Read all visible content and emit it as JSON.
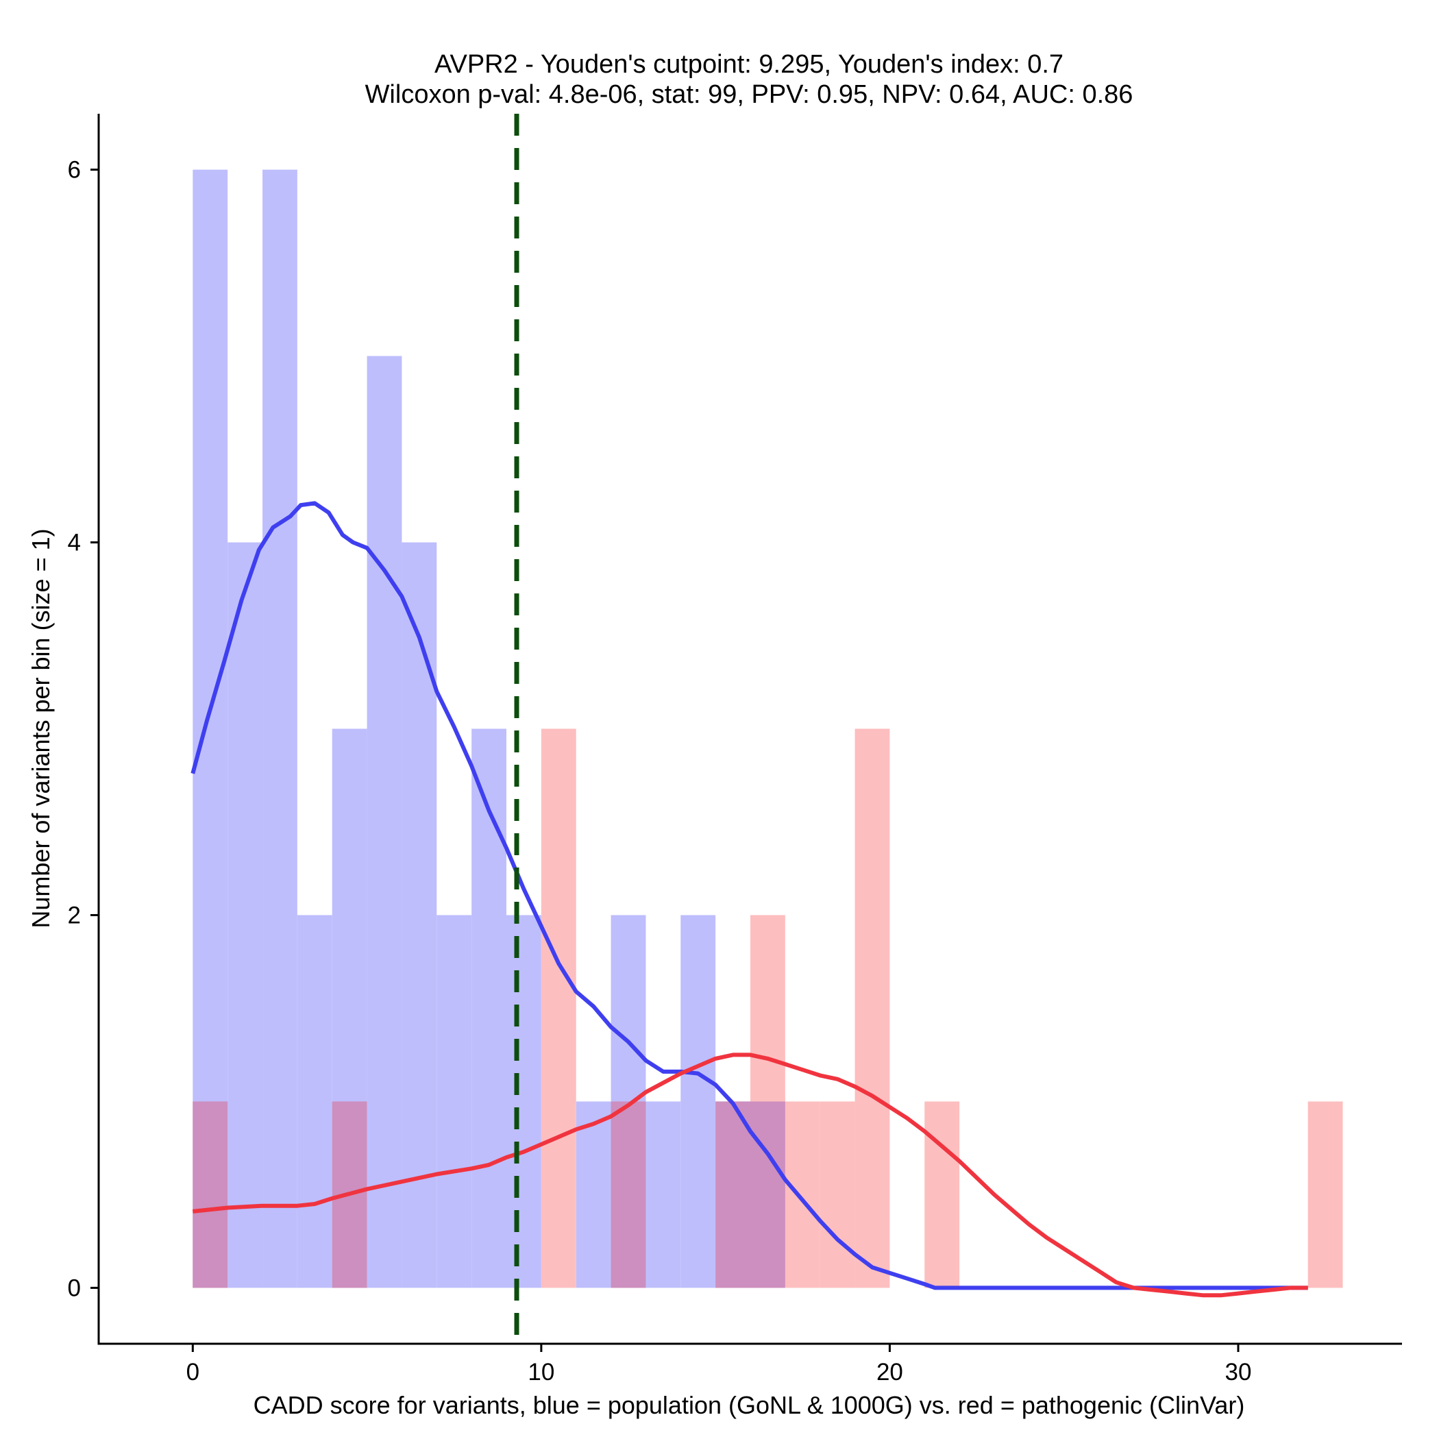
{
  "chart_data": {
    "type": "histogram",
    "title_line1": "AVPR2 - Youden's cutpoint: 9.295, Youden's index: 0.7",
    "title_line2": "Wilcoxon p-val: 4.8e-06, stat: 99, PPV: 0.95, NPV: 0.64, AUC: 0.86",
    "xlabel": "CADD score for variants, blue = population (GoNL & 1000G) vs. red = pathogenic (ClinVar)",
    "ylabel": "Number of variants per bin (size = 1)",
    "xlim": [
      -2.7,
      34.7
    ],
    "ylim": [
      -0.3,
      6.3
    ],
    "x_ticks": [
      0,
      10,
      20,
      30
    ],
    "y_ticks": [
      0,
      2,
      4,
      6
    ],
    "bin_width": 1,
    "cutpoint": 9.295,
    "colors": {
      "population_fill": "#bebefd",
      "pathogenic_fill": "#fdbebf",
      "overlap_fill": "#cc8fbf",
      "population_line": "#3f3ff0",
      "pathogenic_line": "#f0343f",
      "cutpoint_line": "#0d4d0d"
    },
    "series": [
      {
        "name": "population",
        "bins": [
          {
            "x0": 0,
            "count": 6
          },
          {
            "x0": 1,
            "count": 4
          },
          {
            "x0": 2,
            "count": 6
          },
          {
            "x0": 3,
            "count": 2
          },
          {
            "x0": 4,
            "count": 3
          },
          {
            "x0": 5,
            "count": 5
          },
          {
            "x0": 6,
            "count": 4
          },
          {
            "x0": 7,
            "count": 2
          },
          {
            "x0": 8,
            "count": 3
          },
          {
            "x0": 9,
            "count": 2
          },
          {
            "x0": 11,
            "count": 1
          },
          {
            "x0": 12,
            "count": 2
          },
          {
            "x0": 13,
            "count": 1
          },
          {
            "x0": 14,
            "count": 2
          },
          {
            "x0": 15,
            "count": 1
          },
          {
            "x0": 16,
            "count": 1
          }
        ],
        "density_curve": [
          [
            0,
            2.52
          ],
          [
            0.4,
            2.8
          ],
          [
            0.9,
            3.12
          ],
          [
            1.4,
            3.45
          ],
          [
            1.9,
            3.72
          ],
          [
            2.3,
            3.84
          ],
          [
            2.8,
            3.9
          ],
          [
            3.1,
            3.96
          ],
          [
            3.5,
            3.97
          ],
          [
            3.9,
            3.92
          ],
          [
            4.3,
            3.8
          ],
          [
            4.6,
            3.76
          ],
          [
            5.0,
            3.73
          ],
          [
            5.5,
            3.61
          ],
          [
            6.0,
            3.47
          ],
          [
            6.5,
            3.25
          ],
          [
            7.0,
            2.96
          ],
          [
            7.5,
            2.77
          ],
          [
            8.0,
            2.56
          ],
          [
            8.5,
            2.32
          ],
          [
            9.0,
            2.12
          ],
          [
            9.5,
            1.9
          ],
          [
            10.0,
            1.7
          ],
          [
            10.5,
            1.5
          ],
          [
            11.0,
            1.35
          ],
          [
            11.5,
            1.27
          ],
          [
            12.0,
            1.16
          ],
          [
            12.5,
            1.08
          ],
          [
            13.0,
            0.98
          ],
          [
            13.5,
            0.92
          ],
          [
            14.0,
            0.92
          ],
          [
            14.5,
            0.91
          ],
          [
            15.0,
            0.85
          ],
          [
            15.5,
            0.75
          ],
          [
            16.0,
            0.6
          ],
          [
            16.5,
            0.48
          ],
          [
            17.0,
            0.34
          ],
          [
            17.5,
            0.23
          ],
          [
            18.0,
            0.12
          ],
          [
            18.5,
            0.02
          ],
          [
            19.0,
            -0.06
          ],
          [
            19.5,
            -0.13
          ],
          [
            20.0,
            -0.16
          ],
          [
            20.5,
            -0.19
          ],
          [
            21.0,
            -0.22
          ],
          [
            21.3,
            -0.24
          ],
          [
            22,
            -0.24
          ],
          [
            25,
            -0.24
          ],
          [
            28,
            -0.24
          ],
          [
            32,
            -0.24
          ]
        ]
      },
      {
        "name": "pathogenic",
        "bins": [
          {
            "x0": 0,
            "count": 1
          },
          {
            "x0": 4,
            "count": 1
          },
          {
            "x0": 10,
            "count": 3
          },
          {
            "x0": 12,
            "count": 1
          },
          {
            "x0": 15,
            "count": 1
          },
          {
            "x0": 16,
            "count": 2
          },
          {
            "x0": 17,
            "count": 1
          },
          {
            "x0": 18,
            "count": 1
          },
          {
            "x0": 19,
            "count": 3
          },
          {
            "x0": 21,
            "count": 1
          },
          {
            "x0": 32,
            "count": 1
          }
        ],
        "density_curve": [
          [
            0,
            0.17
          ],
          [
            1,
            0.19
          ],
          [
            2,
            0.2
          ],
          [
            3,
            0.2
          ],
          [
            3.5,
            0.21
          ],
          [
            4,
            0.24
          ],
          [
            5,
            0.29
          ],
          [
            6,
            0.33
          ],
          [
            7,
            0.37
          ],
          [
            8,
            0.4
          ],
          [
            8.5,
            0.42
          ],
          [
            9,
            0.46
          ],
          [
            9.5,
            0.49
          ],
          [
            10,
            0.53
          ],
          [
            10.5,
            0.57
          ],
          [
            11,
            0.61
          ],
          [
            11.5,
            0.64
          ],
          [
            12,
            0.68
          ],
          [
            12.5,
            0.74
          ],
          [
            13,
            0.81
          ],
          [
            13.5,
            0.86
          ],
          [
            14,
            0.91
          ],
          [
            14.5,
            0.95
          ],
          [
            15,
            0.99
          ],
          [
            15.5,
            1.01
          ],
          [
            16,
            1.01
          ],
          [
            16.5,
            0.99
          ],
          [
            17,
            0.96
          ],
          [
            17.5,
            0.93
          ],
          [
            18,
            0.9
          ],
          [
            18.5,
            0.88
          ],
          [
            19,
            0.84
          ],
          [
            19.5,
            0.79
          ],
          [
            20,
            0.73
          ],
          [
            20.5,
            0.67
          ],
          [
            21,
            0.6
          ],
          [
            21.5,
            0.52
          ],
          [
            22,
            0.44
          ],
          [
            22.5,
            0.35
          ],
          [
            23,
            0.26
          ],
          [
            23.5,
            0.18
          ],
          [
            24,
            0.1
          ],
          [
            24.5,
            0.03
          ],
          [
            25,
            -0.03
          ],
          [
            25.5,
            -0.09
          ],
          [
            26,
            -0.15
          ],
          [
            26.5,
            -0.21
          ],
          [
            27,
            -0.24
          ],
          [
            27.5,
            -0.25
          ],
          [
            28,
            -0.26
          ],
          [
            28.5,
            -0.27
          ],
          [
            29,
            -0.28
          ],
          [
            29.5,
            -0.28
          ],
          [
            30,
            -0.27
          ],
          [
            30.5,
            -0.26
          ],
          [
            31,
            -0.25
          ],
          [
            31.5,
            -0.24
          ],
          [
            32,
            -0.24
          ]
        ]
      }
    ]
  }
}
